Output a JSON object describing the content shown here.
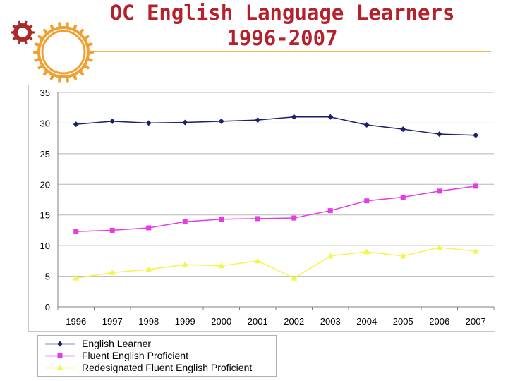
{
  "slide": {
    "title_line1": "OC English Language Learners",
    "title_line2": "1996-2007"
  },
  "colors": {
    "title": "#b5202a",
    "gear": "#f0a030",
    "gear_small": "#a82a2a",
    "rule": "#e8b84a"
  },
  "icons": [
    "gear-icon",
    "gear-outline-icon"
  ],
  "chart_data": {
    "type": "line",
    "title": "",
    "xlabel": "",
    "ylabel": "",
    "categories": [
      "1996",
      "1997",
      "1998",
      "1999",
      "2000",
      "2001",
      "2002",
      "2003",
      "2004",
      "2005",
      "2006",
      "2007"
    ],
    "ylim": [
      0,
      35
    ],
    "yticks": [
      0,
      5,
      10,
      15,
      20,
      25,
      30,
      35
    ],
    "grid": true,
    "legend": "bottom",
    "series": [
      {
        "name": "English Learner",
        "color": "#1a1f6e",
        "marker": "diamond",
        "values": [
          29.8,
          30.3,
          30.0,
          30.1,
          30.3,
          30.5,
          31.0,
          31.0,
          29.7,
          29.0,
          28.2,
          28.0
        ]
      },
      {
        "name": "Fluent English Proficient",
        "color": "#e43ce4",
        "marker": "square",
        "values": [
          12.3,
          12.5,
          12.9,
          13.9,
          14.3,
          14.4,
          14.5,
          15.7,
          17.3,
          17.9,
          18.9,
          19.7
        ]
      },
      {
        "name": "Redesignated Fluent English Proficient",
        "color": "#f4f44a",
        "marker": "triangle",
        "values": [
          4.7,
          5.6,
          6.1,
          6.9,
          6.7,
          7.5,
          4.7,
          8.3,
          9.0,
          8.3,
          9.7,
          9.1
        ]
      }
    ]
  }
}
